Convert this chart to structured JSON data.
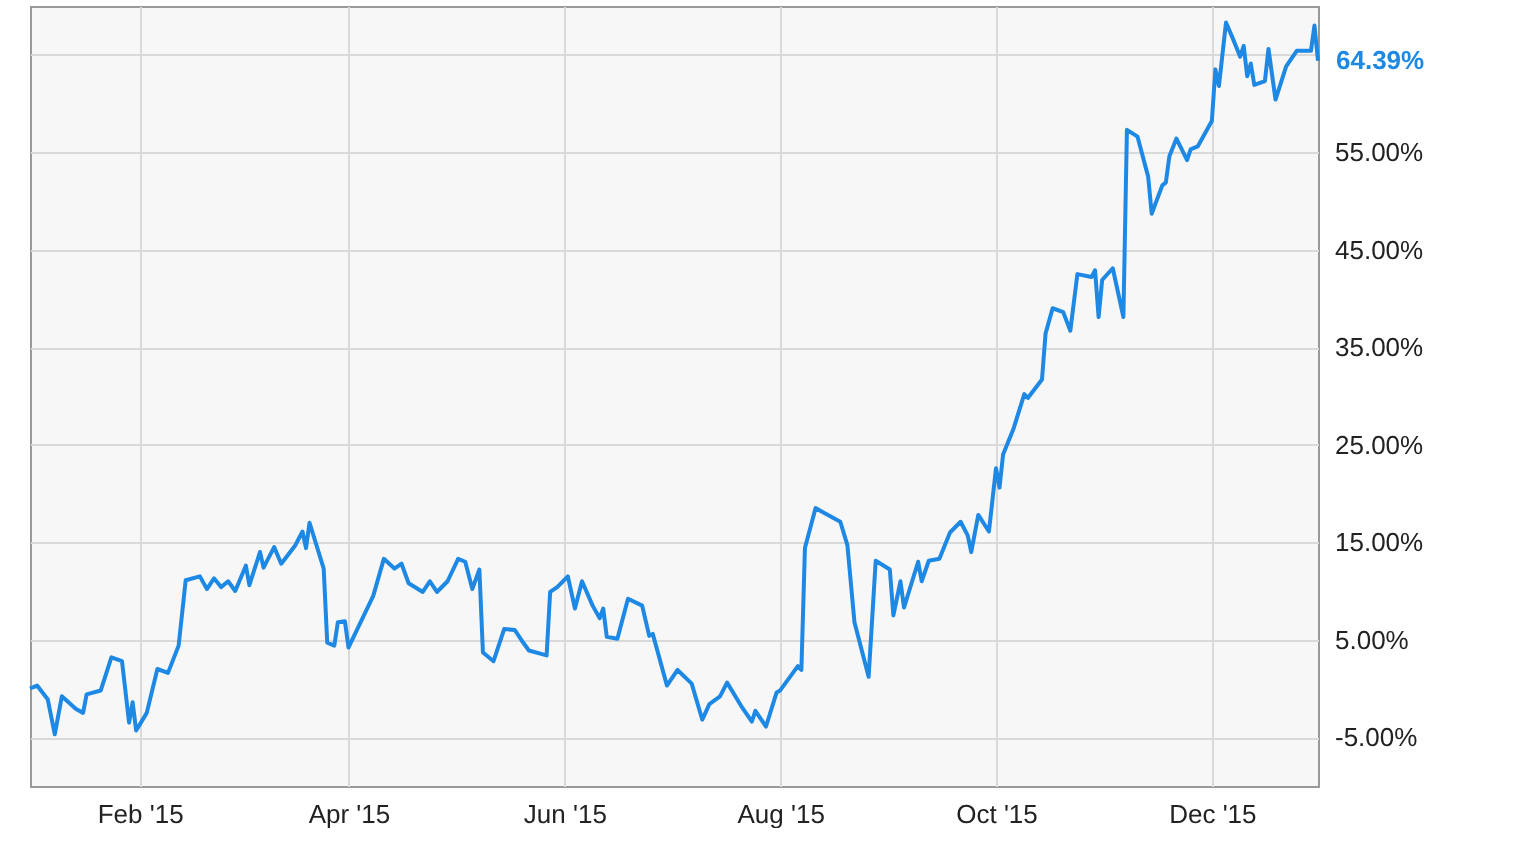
{
  "chart_data": {
    "type": "line",
    "x": [
      "2015-01-01",
      "2015-01-03",
      "2015-01-06",
      "2015-01-08",
      "2015-01-10",
      "2015-01-14",
      "2015-01-16",
      "2015-01-17",
      "2015-01-21",
      "2015-01-24",
      "2015-01-27",
      "2015-01-29",
      "2015-01-30",
      "2015-01-31",
      "2015-02-03",
      "2015-02-06",
      "2015-02-09",
      "2015-02-12",
      "2015-02-14",
      "2015-02-18",
      "2015-02-20",
      "2015-02-22",
      "2015-02-24",
      "2015-02-26",
      "2015-02-28",
      "2015-03-03",
      "2015-03-04",
      "2015-03-07",
      "2015-03-08",
      "2015-03-11",
      "2015-03-13",
      "2015-03-17",
      "2015-03-19",
      "2015-03-20",
      "2015-03-21",
      "2015-03-25",
      "2015-03-26",
      "2015-03-28",
      "2015-03-29",
      "2015-03-31",
      "2015-04-01",
      "2015-04-08",
      "2015-04-11",
      "2015-04-14",
      "2015-04-16",
      "2015-04-18",
      "2015-04-22",
      "2015-04-24",
      "2015-04-26",
      "2015-04-29",
      "2015-05-02",
      "2015-05-04",
      "2015-05-06",
      "2015-05-08",
      "2015-05-09",
      "2015-05-12",
      "2015-05-15",
      "2015-05-18",
      "2015-05-20",
      "2015-05-22",
      "2015-05-27",
      "2015-05-28",
      "2015-05-30",
      "2015-06-02",
      "2015-06-04",
      "2015-06-06",
      "2015-06-09",
      "2015-06-11",
      "2015-06-12",
      "2015-06-13",
      "2015-06-16",
      "2015-06-19",
      "2015-06-23",
      "2015-06-25",
      "2015-06-26",
      "2015-06-30",
      "2015-07-03",
      "2015-07-07",
      "2015-07-10",
      "2015-07-12",
      "2015-07-15",
      "2015-07-17",
      "2015-07-21",
      "2015-07-24",
      "2015-07-25",
      "2015-07-28",
      "2015-07-31",
      "2015-08-01",
      "2015-08-06",
      "2015-08-07",
      "2015-08-08",
      "2015-08-11",
      "2015-08-14",
      "2015-08-18",
      "2015-08-20",
      "2015-08-22",
      "2015-08-26",
      "2015-08-28",
      "2015-09-01",
      "2015-09-02",
      "2015-09-04",
      "2015-09-05",
      "2015-09-09",
      "2015-09-10",
      "2015-09-12",
      "2015-09-15",
      "2015-09-18",
      "2015-09-21",
      "2015-09-23",
      "2015-09-24",
      "2015-09-26",
      "2015-09-29",
      "2015-10-01",
      "2015-10-02",
      "2015-10-03",
      "2015-10-06",
      "2015-10-09",
      "2015-10-10",
      "2015-10-14",
      "2015-10-15",
      "2015-10-17",
      "2015-10-20",
      "2015-10-22",
      "2015-10-24",
      "2015-10-28",
      "2015-10-29",
      "2015-10-30",
      "2015-10-31",
      "2015-11-03",
      "2015-11-06",
      "2015-11-07",
      "2015-11-10",
      "2015-11-13",
      "2015-11-14",
      "2015-11-17",
      "2015-11-18",
      "2015-11-19",
      "2015-11-21",
      "2015-11-24",
      "2015-11-25",
      "2015-11-27",
      "2015-12-01",
      "2015-12-02",
      "2015-12-03",
      "2015-12-05",
      "2015-12-07",
      "2015-12-09",
      "2015-12-10",
      "2015-12-11",
      "2015-12-12",
      "2015-12-13",
      "2015-12-16",
      "2015-12-17",
      "2015-12-19",
      "2015-12-22",
      "2015-12-25",
      "2015-12-29",
      "2015-12-30",
      "2015-12-31"
    ],
    "series": [
      {
        "color": "#1e88e5",
        "values": [
          0,
          0.3,
          -1.1,
          -4.7,
          -0.8,
          -2.1,
          -2.5,
          -0.6,
          -0.2,
          3.2,
          2.8,
          -3.5,
          -1.4,
          -4.3,
          -2.5,
          2.0,
          1.6,
          4.4,
          11.1,
          11.5,
          10.2,
          11.3,
          10.4,
          11.0,
          10.0,
          12.6,
          10.6,
          14.0,
          12.4,
          14.5,
          12.8,
          14.7,
          16.1,
          14.4,
          17.0,
          12.3,
          4.7,
          4.4,
          6.8,
          6.9,
          4.2,
          9.5,
          13.3,
          12.3,
          12.8,
          10.8,
          9.9,
          11.0,
          9.9,
          11.0,
          13.3,
          13.0,
          10.2,
          12.2,
          3.7,
          2.8,
          6.1,
          6.0,
          4.9,
          3.9,
          3.4,
          9.9,
          10.4,
          11.5,
          8.2,
          11.0,
          8.5,
          7.2,
          8.2,
          5.3,
          5.1,
          9.2,
          8.5,
          5.4,
          5.6,
          0.3,
          1.9,
          0.5,
          -3.2,
          -1.6,
          -0.8,
          0.6,
          -1.8,
          -3.4,
          -2.3,
          -3.9,
          -0.4,
          -0.2,
          2.3,
          1.9,
          14.4,
          18.5,
          17.9,
          17.1,
          14.7,
          6.8,
          1.2,
          13.1,
          12.2,
          7.5,
          11.0,
          8.3,
          13.0,
          11.0,
          13.1,
          13.3,
          16.0,
          17.1,
          15.7,
          14.0,
          17.8,
          16.1,
          22.6,
          20.6,
          24.0,
          26.7,
          30.2,
          29.8,
          31.7,
          36.4,
          39.0,
          38.6,
          36.7,
          42.5,
          42.2,
          42.9,
          38.1,
          41.9,
          43.1,
          38.1,
          57.3,
          56.6,
          52.5,
          48.7,
          51.6,
          51.9,
          54.6,
          56.4,
          54.2,
          55.3,
          55.6,
          58.2,
          63.5,
          61.8,
          68.3,
          66.6,
          64.8,
          65.9,
          62.8,
          64.1,
          61.9,
          62.3,
          65.6,
          60.4,
          63.8,
          65.4,
          65.4,
          68.0,
          64.39
        ]
      }
    ],
    "xlim": [
      "2015-01-01",
      "2015-12-31"
    ],
    "xticks": [
      {
        "value": "2015-02-01",
        "label": "Feb '15"
      },
      {
        "value": "2015-04-01",
        "label": "Apr '15"
      },
      {
        "value": "2015-06-01",
        "label": "Jun '15"
      },
      {
        "value": "2015-08-01",
        "label": "Aug '15"
      },
      {
        "value": "2015-10-01",
        "label": "Oct '15"
      },
      {
        "value": "2015-12-01",
        "label": "Dec '15"
      }
    ],
    "ylim": [
      -10,
      70
    ],
    "yticks": [
      {
        "value": -5,
        "label": "-5.00%"
      },
      {
        "value": 5,
        "label": "5.00%"
      },
      {
        "value": 15,
        "label": "15.00%"
      },
      {
        "value": 25,
        "label": "25.00%"
      },
      {
        "value": 35,
        "label": "35.00%"
      },
      {
        "value": 45,
        "label": "45.00%"
      },
      {
        "value": 55,
        "label": "55.00%"
      },
      {
        "value": 65,
        "label": null
      }
    ],
    "grid": true,
    "marker": "none",
    "line_style": "solid",
    "annotations": [
      {
        "text": "64.39%",
        "x": "2015-12-31",
        "y": 64.39
      }
    ]
  }
}
